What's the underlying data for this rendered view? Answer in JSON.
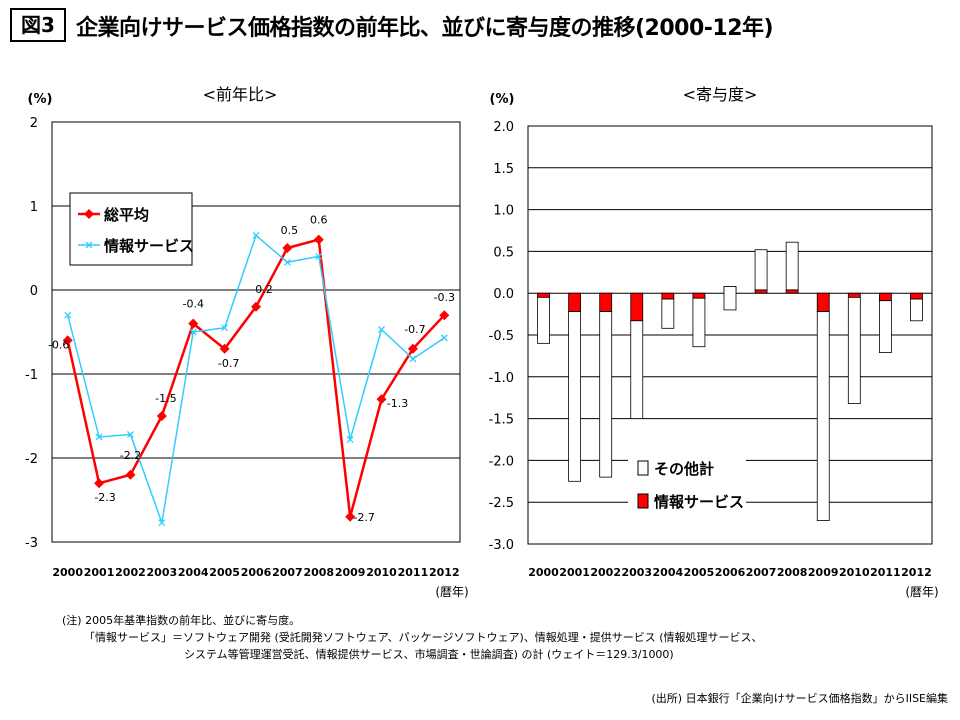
{
  "figure_label": "図3",
  "title": "企業向けサービス価格指数の前年比、並びに寄与度の推移(2000-12年)",
  "notes": {
    "line1": "(注) 2005年基準指数の前年比、並びに寄与度。",
    "line2": "「情報サービス」＝ソフトウェア開発 (受託開発ソフトウェア、パッケージソフトウェア)、情報処理・提供サービス (情報処理サービス、",
    "line3": "システム等管理運営受託、情報提供サービス、市場調査・世論調査) の計 (ウェイト＝129.3/1000)"
  },
  "source": "(出所) 日本銀行「企業向けサービス価格指数」からIISE編集",
  "colors": {
    "red": "#ff0000",
    "cyan": "#33ccff",
    "grid": "#000000"
  },
  "chart_data": [
    {
      "type": "line",
      "title": "<前年比>",
      "ylabel": "(%)",
      "xlabel": "(暦年)",
      "ylim": [
        -3,
        2
      ],
      "yticks": [
        "2",
        "1",
        "0",
        "-1",
        "-2",
        "-3"
      ],
      "categories": [
        "2000",
        "2001",
        "2002",
        "2003",
        "2004",
        "2005",
        "2006",
        "2007",
        "2008",
        "2009",
        "2010",
        "2011",
        "2012"
      ],
      "series": [
        {
          "name": "総平均",
          "color": "#ff0000",
          "marker": "diamond",
          "values": [
            -0.6,
            -2.3,
            -2.2,
            -1.5,
            -0.4,
            -0.7,
            -0.2,
            0.5,
            0.6,
            -2.7,
            -1.3,
            -0.7,
            -0.3
          ]
        },
        {
          "name": "情報サービス",
          "color": "#33ccff",
          "marker": "x",
          "values": [
            -0.3,
            -1.75,
            -1.72,
            -2.77,
            -0.5,
            -0.45,
            0.65,
            0.33,
            0.4,
            -1.78,
            -0.47,
            -0.82,
            -0.57
          ]
        }
      ],
      "data_labels": [
        "-0.6",
        "-2.3",
        "-2.2",
        "-1.5",
        "-0.4",
        "-0.7",
        "-0.2",
        "0.5",
        "0.6",
        "-2.7",
        "-1.3",
        "-0.7",
        "-0.3"
      ],
      "legend": "upper-left"
    },
    {
      "type": "bar",
      "title": "<寄与度>",
      "ylabel": "(%)",
      "xlabel": "(暦年)",
      "ylim": [
        -3.0,
        2.0
      ],
      "yticks": [
        "2.0",
        "1.5",
        "1.0",
        "0.5",
        "0.0",
        "-0.5",
        "-1.0",
        "-1.5",
        "-2.0",
        "-2.5",
        "-3.0"
      ],
      "categories": [
        "2000",
        "2001",
        "2002",
        "2003",
        "2004",
        "2005",
        "2006",
        "2007",
        "2008",
        "2009",
        "2010",
        "2011",
        "2012"
      ],
      "series": [
        {
          "name": "その他計",
          "color": "#ffffff",
          "values": [
            -0.55,
            -2.03,
            -1.98,
            -1.17,
            -0.35,
            -0.58,
            -0.28,
            0.48,
            0.57,
            -2.5,
            -1.27,
            -0.62,
            -0.26
          ]
        },
        {
          "name": "情報サービス",
          "color": "#ff0000",
          "values": [
            -0.05,
            -0.22,
            -0.22,
            -0.33,
            -0.07,
            -0.06,
            0.08,
            0.04,
            0.04,
            -0.22,
            -0.05,
            -0.09,
            -0.07
          ]
        }
      ],
      "stacked": true,
      "legend": "lower-right"
    }
  ]
}
